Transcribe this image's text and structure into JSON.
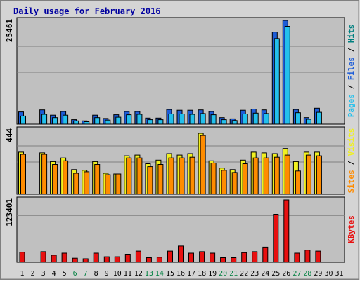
{
  "title": "Daily usage for February 2016",
  "colors": {
    "title": "#0000a0",
    "frame_bg": "#d4d4d4",
    "plot_bg": "#c0c0c0",
    "grid": "#808080",
    "hits": "#1c5cd8",
    "files": "#24c0ec",
    "pages": "#24c0ec",
    "visits": "#f0f020",
    "sites": "#ff8c00",
    "kbytes": "#e81010",
    "weekday": "#000000",
    "weekend": "#008040"
  },
  "chart_data": [
    {
      "type": "bar",
      "name": "hits-files-pages",
      "ymax_label": "25461",
      "ylim": [
        0,
        25461
      ],
      "legend": [
        {
          "text": "Pages",
          "color": "#24c0ec"
        },
        {
          "text": " / ",
          "color": "#000000"
        },
        {
          "text": "Files",
          "color": "#1c5cd8"
        },
        {
          "text": " / ",
          "color": "#000000"
        },
        {
          "text": "Hits",
          "color": "#008080"
        }
      ],
      "series": [
        {
          "name": "Hits",
          "values": [
            3000,
            0,
            3500,
            2200,
            3100,
            1100,
            800,
            2200,
            1400,
            2300,
            3100,
            3100,
            1500,
            1500,
            3600,
            3400,
            3400,
            3500,
            3100,
            1600,
            1300,
            3400,
            3700,
            3500,
            22600,
            25461,
            3600,
            1600,
            3900,
            0,
            0
          ]
        },
        {
          "name": "Files",
          "values": [
            2000,
            0,
            2400,
            1600,
            2200,
            800,
            600,
            1600,
            1000,
            1700,
            2300,
            2400,
            1100,
            1100,
            2500,
            2500,
            2400,
            2600,
            2300,
            1100,
            900,
            2500,
            2700,
            2600,
            21000,
            24000,
            2800,
            1200,
            2900,
            0,
            0
          ]
        }
      ]
    },
    {
      "type": "bar",
      "name": "visits-sites",
      "ymax_label": "444",
      "ylim": [
        0,
        444
      ],
      "legend": [
        {
          "text": "Sites",
          "color": "#ff8c00"
        },
        {
          "text": " / ",
          "color": "#000000"
        },
        {
          "text": "Visits",
          "color": "#f0f020"
        }
      ],
      "series": [
        {
          "name": "Visits",
          "values": [
            290,
            0,
            285,
            225,
            250,
            170,
            165,
            225,
            145,
            140,
            265,
            270,
            210,
            235,
            280,
            270,
            280,
            420,
            230,
            180,
            170,
            235,
            290,
            285,
            280,
            315,
            225,
            290,
            290,
            0,
            0
          ]
        },
        {
          "name": "Sites",
          "values": [
            275,
            0,
            275,
            205,
            230,
            145,
            155,
            205,
            135,
            140,
            250,
            250,
            190,
            205,
            250,
            250,
            255,
            405,
            215,
            165,
            150,
            210,
            250,
            250,
            255,
            270,
            160,
            270,
            265,
            0,
            0
          ]
        }
      ]
    },
    {
      "type": "bar",
      "name": "kbytes",
      "ymax_label": "123401",
      "ylim": [
        0,
        123401
      ],
      "legend": [
        {
          "text": "KBytes",
          "color": "#e81010"
        }
      ],
      "series": [
        {
          "name": "KBytes",
          "values": [
            20000,
            0,
            21000,
            14000,
            18000,
            8000,
            7000,
            18000,
            11000,
            11000,
            16000,
            22000,
            9000,
            10000,
            22000,
            32000,
            18000,
            21000,
            18000,
            9000,
            9000,
            19000,
            21000,
            30000,
            95000,
            123401,
            18000,
            24000,
            22000,
            0,
            0
          ]
        }
      ]
    }
  ],
  "days": [
    "1",
    "2",
    "3",
    "4",
    "5",
    "6",
    "7",
    "8",
    "9",
    "10",
    "11",
    "12",
    "13",
    "14",
    "15",
    "16",
    "17",
    "18",
    "19",
    "20",
    "21",
    "22",
    "23",
    "24",
    "25",
    "26",
    "27",
    "28",
    "29",
    "30",
    "31"
  ],
  "weekend_days": [
    6,
    7,
    13,
    14,
    20,
    21,
    27,
    28
  ]
}
